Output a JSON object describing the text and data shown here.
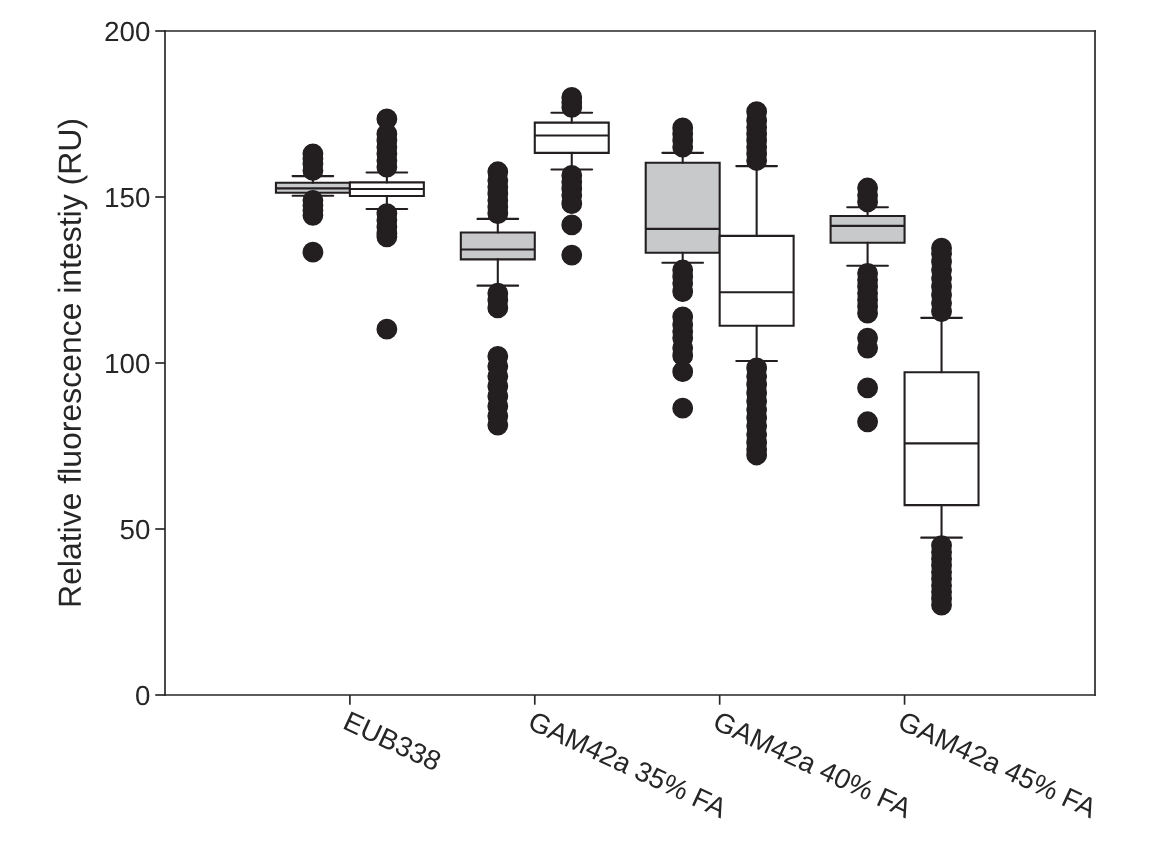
{
  "chart_data": {
    "type": "box",
    "ylabel": "Relative fluorescence intestiy (RU)",
    "categories": [
      "EUB338",
      "GAM42a 35% FA",
      "GAM42a 40% FA",
      "GAM42a 45% FA"
    ],
    "ylim": [
      0,
      200
    ],
    "yticks": [
      0,
      50,
      100,
      150,
      200
    ],
    "grid": false,
    "series": [
      {
        "color": "#c8c9cb",
        "boxes": [
          {
            "low": 150.4,
            "q1": 151.3,
            "median": 152.6,
            "q3": 154.3,
            "high": 156.3,
            "outliers": [
              158,
              160,
              161.5,
              163,
              149,
              147.5,
              146,
              144.5,
              133.4
            ]
          },
          {
            "low": 123.3,
            "q1": 131.2,
            "median": 134.2,
            "q3": 139.3,
            "high": 143.4,
            "outliers": [
              145,
              147,
              149,
              151,
              153,
              155,
              157.6,
              121,
              119,
              116.6,
              102,
              99,
              96,
              93,
              90,
              87,
              84,
              81.3
            ]
          },
          {
            "low": 130.2,
            "q1": 133.2,
            "median": 140.4,
            "q3": 160.3,
            "high": 163.3,
            "outliers": [
              165,
              167,
              169,
              170.8,
              128,
              126,
              124,
              121.5,
              113.9,
              111.5,
              109.5,
              107.5,
              104.5,
              102.2,
              97.4,
              86.4
            ]
          },
          {
            "low": 129.3,
            "q1": 136.2,
            "median": 141.3,
            "q3": 144.3,
            "high": 146.9,
            "outliers": [
              148.5,
              150.5,
              152.7,
              127,
              125,
              123,
              121,
              119,
              117,
              115,
              107.5,
              104.5,
              92.5,
              82.3
            ]
          }
        ]
      },
      {
        "color": "#ffffff",
        "boxes": [
          {
            "low": 146.4,
            "q1": 150.3,
            "median": 152.4,
            "q3": 154.4,
            "high": 157.4,
            "outliers": [
              159,
              161,
              163,
              165,
              167,
              169,
              173.5,
              145,
              143,
              141,
              139,
              138,
              110.2
            ]
          },
          {
            "low": 158.3,
            "q1": 163.3,
            "median": 168.5,
            "q3": 172.4,
            "high": 175.4,
            "outliers": [
              177,
              178.5,
              180,
              156.5,
              154.5,
              152.5,
              150.5,
              148,
              141.6,
              132.5
            ]
          },
          {
            "low": 100.6,
            "q1": 111.2,
            "median": 121.3,
            "q3": 138.3,
            "high": 159.3,
            "outliers": [
              161,
              163,
              165,
              167,
              169,
              171,
              173,
              175.7,
              98.5,
              96,
              93.5,
              91,
              88.5,
              86,
              83.5,
              81,
              78.5,
              76,
              74,
              72.3
            ]
          },
          {
            "low": 47.4,
            "q1": 57.2,
            "median": 75.8,
            "q3": 97.2,
            "high": 113.6,
            "outliers": [
              115.5,
              118,
              120.5,
              123,
              125.5,
              128,
              130.5,
              133,
              134.6,
              45,
              43,
              41,
              39,
              37,
              35,
              33,
              31,
              29,
              27.1
            ]
          }
        ]
      }
    ]
  }
}
